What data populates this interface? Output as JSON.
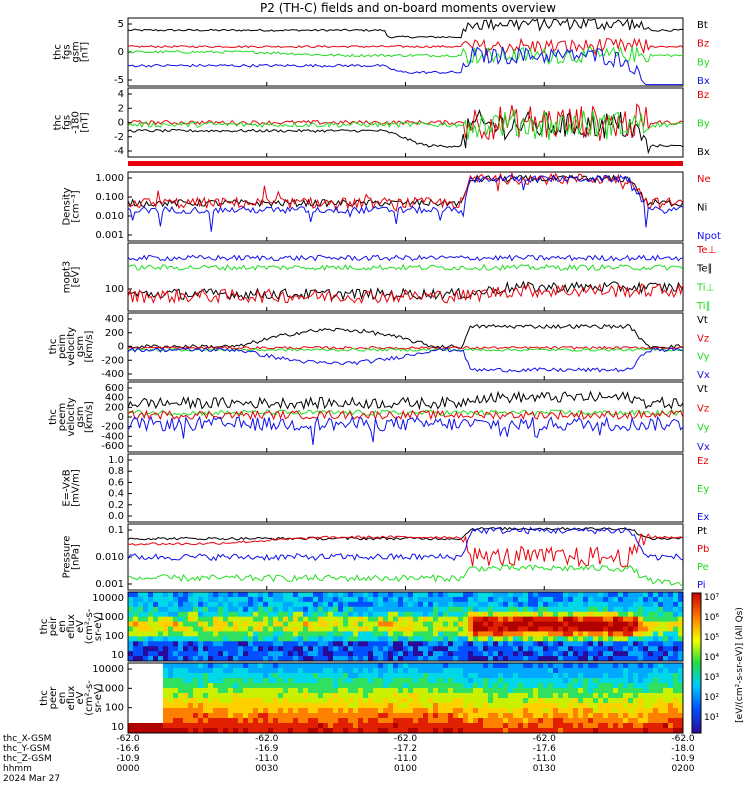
{
  "title": "P2 (TH-C) fields and on-board moments overview",
  "date_label": "2024 Mar 27",
  "colorbar_label": "[eV/(cm²-s-sr-eV)] (All Qs)",
  "colors": {
    "black": "#000000",
    "red": "#e8000b",
    "green": "#22dd22",
    "blue": "#1010ee"
  },
  "chart_data": {
    "type": "line",
    "x": {
      "label": "hhmm",
      "ticks": [
        "0000",
        "0030",
        "0100",
        "0130",
        "0200"
      ]
    },
    "ephemeris": [
      {
        "label": "thc_X-GSM",
        "values": [
          "-62.0",
          "-62.0",
          "-62.0",
          "-62.0",
          "-62.0"
        ]
      },
      {
        "label": "thc_Y-GSM",
        "values": [
          "-16.6",
          "-16.9",
          "-17.2",
          "-17.6",
          "-18.0"
        ]
      },
      {
        "label": "thc_Z-GSM",
        "values": [
          "-10.9",
          "-11.0",
          "-11.0",
          "-11.0",
          "-10.9"
        ]
      }
    ],
    "panels": [
      {
        "id": "fgs",
        "ylabel": [
          "thc",
          "fgs",
          "gsm",
          "[nT]"
        ],
        "yticks": [
          "5",
          "0",
          "-5"
        ],
        "ylim": [
          -8,
          9
        ],
        "series": [
          {
            "name": "Bt",
            "color": "black"
          },
          {
            "name": "Bz",
            "color": "red"
          },
          {
            "name": "By",
            "color": "green"
          },
          {
            "name": "Bx",
            "color": "blue"
          }
        ]
      },
      {
        "id": "fgl",
        "ylabel": [
          "thc",
          "fgs",
          "-180",
          "[nT]"
        ],
        "yticks": [
          "4",
          "2",
          "0",
          "-2",
          "-4"
        ],
        "ylim": [
          -5,
          5
        ],
        "series": [
          {
            "name": "Bz",
            "color": "red"
          },
          {
            "name": "By",
            "color": "green"
          },
          {
            "name": "Bx",
            "color": "black"
          }
        ]
      },
      {
        "id": "density",
        "ylabel": [
          "Density",
          "[cm⁻³]"
        ],
        "yticks": [
          "1.000",
          "0.100",
          "0.010",
          "0.001"
        ],
        "ylim": [
          0.0005,
          2
        ],
        "scale": "log",
        "series": [
          {
            "name": "Ne",
            "color": "red"
          },
          {
            "name": "Ni",
            "color": "black"
          },
          {
            "name": "Npot",
            "color": "blue"
          }
        ]
      },
      {
        "id": "temp",
        "ylabel": [
          "mopt3",
          "[eV]"
        ],
        "yticks": [
          "100"
        ],
        "scale": "log",
        "series": [
          {
            "name": "Te⊥",
            "color": "red"
          },
          {
            "name": "Te∥",
            "color": "black"
          },
          {
            "name": "Ti⊥",
            "color": "green"
          },
          {
            "name": "Ti∥",
            "color": "green"
          }
        ]
      },
      {
        "id": "peim",
        "ylabel": [
          "thc",
          "peim",
          "velocity",
          "gsm",
          "[km/s]"
        ],
        "yticks": [
          "400",
          "200",
          "0",
          "-200",
          "-400"
        ],
        "ylim": [
          -450,
          500
        ],
        "series": [
          {
            "name": "Vt",
            "color": "black"
          },
          {
            "name": "Vz",
            "color": "red"
          },
          {
            "name": "Vy",
            "color": "green"
          },
          {
            "name": "Vx",
            "color": "blue"
          }
        ]
      },
      {
        "id": "peem",
        "ylabel": [
          "thc",
          "peem",
          "velocity",
          "gsm",
          "[km/s]"
        ],
        "yticks": [
          "600",
          "400",
          "200",
          "0",
          "-200",
          "-400",
          "-600"
        ],
        "ylim": [
          -750,
          700
        ],
        "series": [
          {
            "name": "Vt",
            "color": "black"
          },
          {
            "name": "Vz",
            "color": "red"
          },
          {
            "name": "Vy",
            "color": "green"
          },
          {
            "name": "Vx",
            "color": "blue"
          }
        ]
      },
      {
        "id": "efield",
        "ylabel": [
          "E=-VxB",
          "[mV/m]"
        ],
        "yticks": [
          "1.0",
          "0.8",
          "0.6",
          "0.4",
          "0.2",
          "0.0"
        ],
        "ylim": [
          0,
          1
        ],
        "series": [
          {
            "name": "Ez",
            "color": "red"
          },
          {
            "name": "Ey",
            "color": "green"
          },
          {
            "name": "Ex",
            "color": "blue"
          }
        ]
      },
      {
        "id": "pressure",
        "ylabel": [
          "Pressure",
          "[nPa]"
        ],
        "yticks": [
          "0.1",
          "0.010",
          "0.001"
        ],
        "scale": "log",
        "series": [
          {
            "name": "Pt",
            "color": "black"
          },
          {
            "name": "Pb",
            "color": "red"
          },
          {
            "name": "Pe",
            "color": "green"
          },
          {
            "name": "Pi",
            "color": "blue"
          }
        ]
      },
      {
        "id": "peir",
        "ylabel": [
          "thc",
          "peir",
          "en",
          "eflux",
          "eV",
          "(cm²-s-",
          "sr-eV)"
        ],
        "yticks": [
          "10000",
          "1000",
          "100",
          "10"
        ],
        "type": "spectrogram"
      },
      {
        "id": "peer",
        "ylabel": [
          "thc",
          "peer",
          "en",
          "eflux",
          "eV",
          "(cm²-s-",
          "sr-eV)"
        ],
        "yticks": [
          "10000",
          "1000",
          "100",
          "10"
        ],
        "type": "spectrogram"
      }
    ],
    "colorbar_ticks": [
      "10⁷",
      "10⁶",
      "10⁵",
      "10⁴",
      "10³",
      "10²",
      "10¹"
    ]
  }
}
